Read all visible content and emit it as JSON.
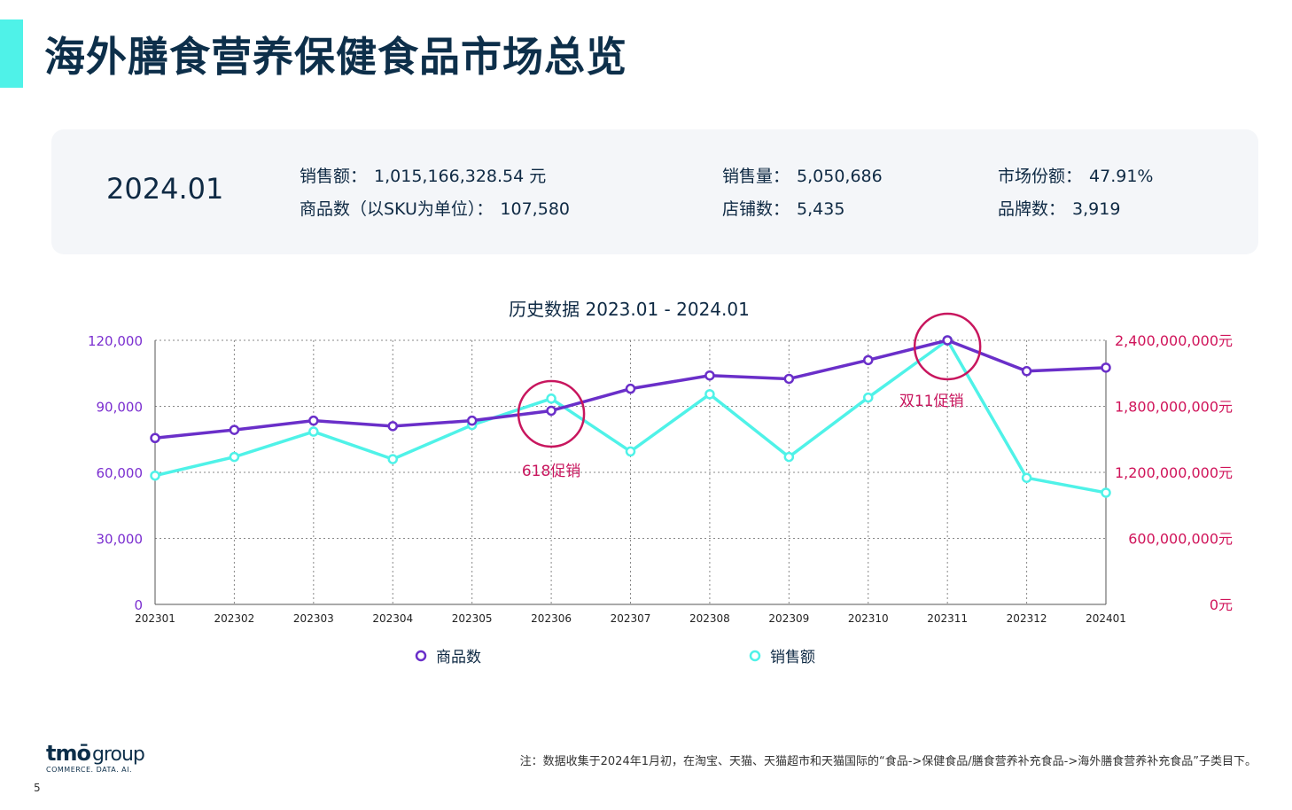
{
  "page": {
    "title": "海外膳食营养保健食品市场总览",
    "page_number": "5",
    "footnote": "注：数据收集于2024年1月初，在淘宝、天猫、天猫超市和天猫国际的“食品->保健食品/膳食营养补充食品->海外膳食营养补充食品”子类目下。",
    "logo_brand": "tmō",
    "logo_group": "group",
    "logo_tagline": "COMMERCE. DATA. AI."
  },
  "summary": {
    "period": "2024.01",
    "stats": [
      {
        "label": "销售额：",
        "value": "1,015,166,328.54 元"
      },
      {
        "label": "商品数（以SKU为单位）：",
        "value": "107,580"
      },
      {
        "label": "销售量：",
        "value": "5,050,686"
      },
      {
        "label": "店铺数：",
        "value": "5,435"
      },
      {
        "label": "市场份额：",
        "value": "47.91%"
      },
      {
        "label": "品牌数：",
        "value": "3,919"
      }
    ]
  },
  "colors": {
    "accent": "#4ff2e8",
    "series_products": "#6a2fc9",
    "series_sales": "#4ff2e8",
    "highlight": "#c8165e",
    "left_axis": "#7b2fd0",
    "right_axis": "#d0145a"
  },
  "chart_data": {
    "type": "line",
    "title": "历史数据 2023.01 - 2024.01",
    "categories": [
      "202301",
      "202302",
      "202303",
      "202304",
      "202305",
      "202306",
      "202307",
      "202308",
      "202309",
      "202310",
      "202311",
      "202312",
      "202401"
    ],
    "series": [
      {
        "name": "商品数",
        "axis": "left",
        "values": [
          75600,
          79300,
          83500,
          81000,
          83500,
          88000,
          98000,
          104000,
          102500,
          111000,
          120000,
          106000,
          107580
        ]
      },
      {
        "name": "销售额",
        "axis": "right",
        "values": [
          1170000000,
          1340000000,
          1570000000,
          1320000000,
          1630000000,
          1870000000,
          1390000000,
          1910000000,
          1340000000,
          1880000000,
          2400000000,
          1150000000,
          1015166328.54
        ]
      }
    ],
    "y_left": {
      "ylim": [
        0,
        120000
      ],
      "ticks": [
        "0",
        "30,000",
        "60,000",
        "90,000",
        "120,000"
      ]
    },
    "y_right": {
      "ylim": [
        0,
        2400000000
      ],
      "ticks": [
        "0元",
        "600,000,000元",
        "1,200,000,000元",
        "1,800,000,000元",
        "2,400,000,000元"
      ]
    },
    "grid": true,
    "legend_position": "bottom",
    "annotations": [
      {
        "text": "618促销",
        "category": "202306"
      },
      {
        "text": "双11促销",
        "category": "202311"
      }
    ]
  }
}
